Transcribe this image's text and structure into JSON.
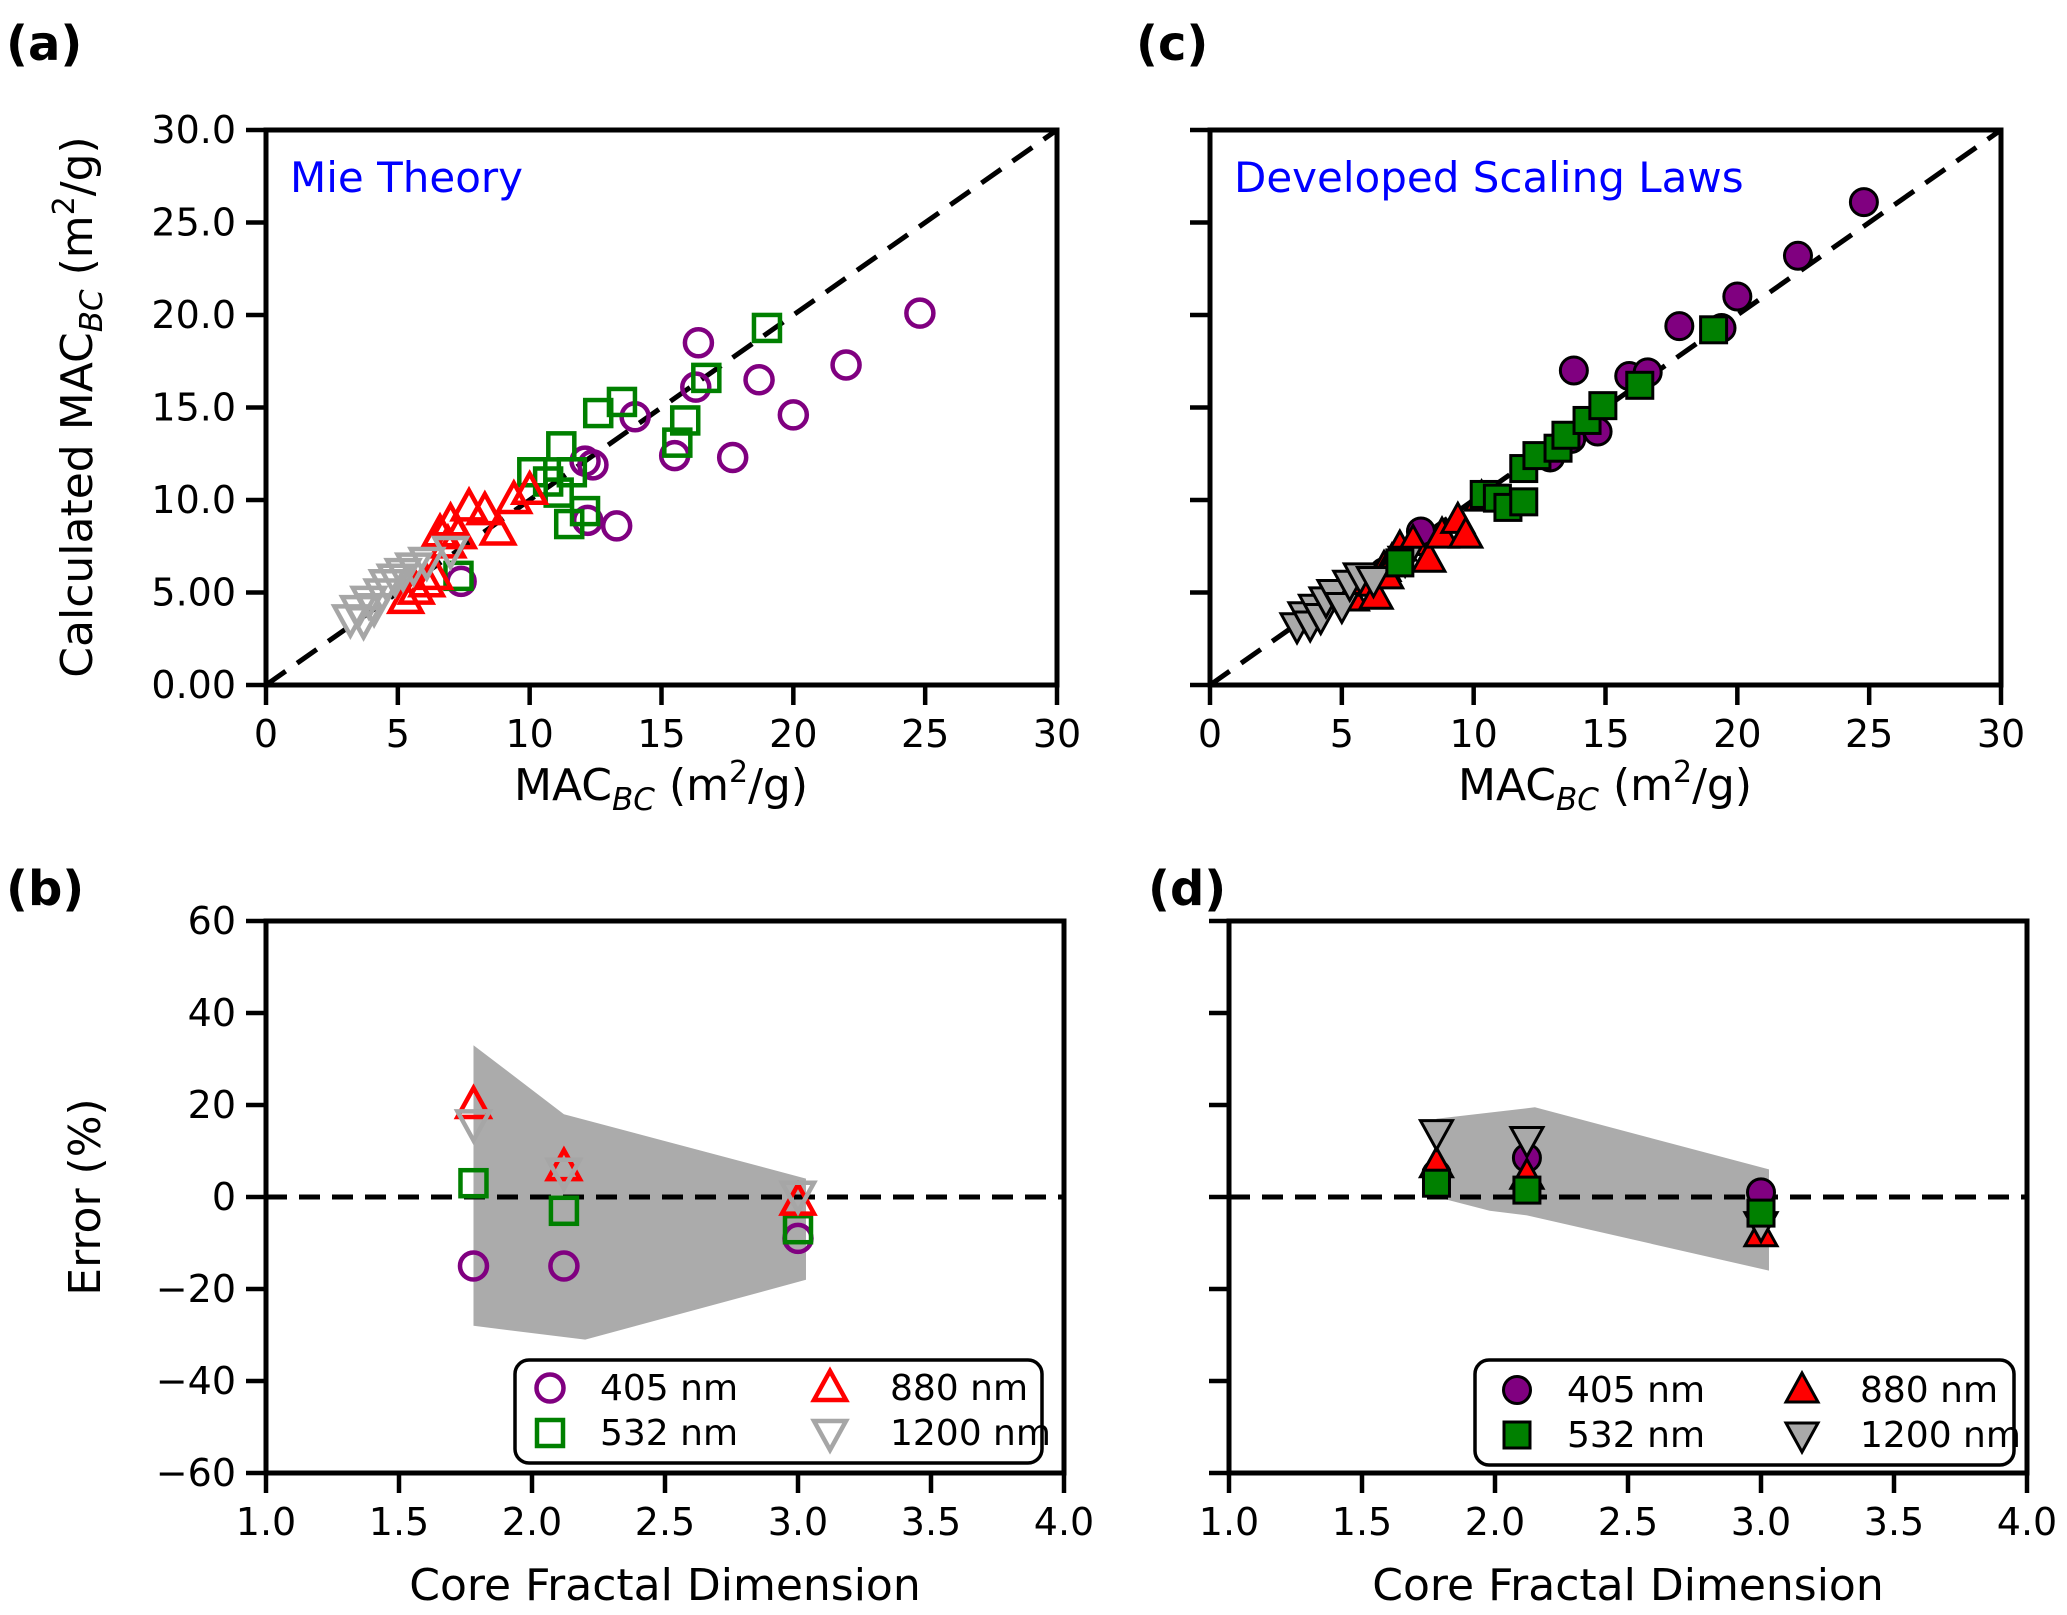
{
  "figure": {
    "background": "#ffffff",
    "annotation_color": "#0000FF",
    "band_color": "#ABABAB",
    "wavelength_colors": {
      "405 nm": "#800080",
      "532 nm": "#008000",
      "880 nm": "#FF0000",
      "1200 nm": "#A6A6A6"
    }
  },
  "chart_data": [
    {
      "panel_label": "(a)",
      "type": "scatter",
      "title": "Mie Theory",
      "xlim": [
        0,
        30
      ],
      "ylim": [
        0,
        30
      ],
      "xticks": {
        "values": [
          0,
          5,
          10,
          15,
          20,
          25,
          30
        ],
        "labels": [
          "0",
          "5",
          "10",
          "15",
          "20",
          "25",
          "30"
        ]
      },
      "yticks": {
        "values": [
          0,
          5,
          10,
          15,
          20,
          25,
          30
        ],
        "labels": [
          "0.00",
          "5.00",
          "10.0",
          "15.0",
          "20.0",
          "25.0",
          "30.0"
        ]
      },
      "xlabel_parts": [
        [
          "t",
          "MAC"
        ],
        [
          "sub",
          "BC"
        ],
        [
          "t",
          " (m"
        ],
        [
          "sup",
          "2"
        ],
        [
          "t",
          "/g)"
        ]
      ],
      "ylabel_parts": [
        [
          "t",
          "Calculated MAC"
        ],
        [
          "sub",
          "BC"
        ],
        [
          "t",
          " (m"
        ],
        [
          "sup",
          "2"
        ],
        [
          "t",
          "/g)"
        ]
      ],
      "identity_line": true,
      "marker_style": "open",
      "z_order": [
        0,
        1,
        2,
        3
      ],
      "series": [
        {
          "name": "405 nm",
          "marker": "circle",
          "color": "#800080",
          "points": [
            [
              7.4,
              5.6
            ],
            [
              12.1,
              12.1
            ],
            [
              12.4,
              11.9
            ],
            [
              14.0,
              14.5
            ],
            [
              12.2,
              8.9
            ],
            [
              13.3,
              8.6
            ],
            [
              15.5,
              12.4
            ],
            [
              17.7,
              12.3
            ],
            [
              16.4,
              18.5
            ],
            [
              16.3,
              16.1
            ],
            [
              18.7,
              16.5
            ],
            [
              20.0,
              14.6
            ],
            [
              22.0,
              17.3
            ],
            [
              24.8,
              20.1
            ]
          ]
        },
        {
          "name": "532 nm",
          "marker": "square",
          "color": "#008000",
          "points": [
            [
              7.3,
              5.9
            ],
            [
              10.1,
              11.5
            ],
            [
              10.7,
              11.0
            ],
            [
              11.1,
              10.4
            ],
            [
              11.2,
              12.9
            ],
            [
              11.6,
              11.5
            ],
            [
              12.6,
              14.7
            ],
            [
              13.5,
              15.3
            ],
            [
              11.5,
              8.7
            ],
            [
              12.1,
              9.4
            ],
            [
              15.9,
              14.3
            ],
            [
              15.6,
              13.1
            ],
            [
              16.7,
              16.6
            ],
            [
              19.0,
              19.3
            ]
          ]
        },
        {
          "name": "880 nm",
          "marker": "triangle-up",
          "color": "#FF0000",
          "points": [
            [
              5.3,
              4.6
            ],
            [
              5.7,
              5.1
            ],
            [
              6.1,
              5.5
            ],
            [
              6.4,
              5.9
            ],
            [
              6.6,
              8.2
            ],
            [
              7.0,
              8.8
            ],
            [
              7.3,
              8.1
            ],
            [
              7.7,
              9.6
            ],
            [
              8.3,
              9.4
            ],
            [
              8.8,
              8.3
            ],
            [
              9.4,
              10.0
            ],
            [
              10.0,
              10.5
            ],
            [
              6.9,
              7.6
            ]
          ]
        },
        {
          "name": "1200 nm",
          "marker": "triangle-down",
          "color": "#A6A6A6",
          "points": [
            [
              3.2,
              3.6
            ],
            [
              3.5,
              4.1
            ],
            [
              3.7,
              3.5
            ],
            [
              3.9,
              4.6
            ],
            [
              4.1,
              4.2
            ],
            [
              4.4,
              5.0
            ],
            [
              4.6,
              5.5
            ],
            [
              4.9,
              5.8
            ],
            [
              5.2,
              6.1
            ],
            [
              5.6,
              6.4
            ],
            [
              6.1,
              6.7
            ],
            [
              7.0,
              7.3
            ]
          ]
        }
      ]
    },
    {
      "panel_label": "(b)",
      "type": "scatter",
      "title": "",
      "xlim": [
        1.0,
        4.0
      ],
      "ylim": [
        -60,
        60
      ],
      "xticks": {
        "values": [
          1.0,
          1.5,
          2.0,
          2.5,
          3.0,
          3.5,
          4.0
        ],
        "labels": [
          "1.0",
          "1.5",
          "2.0",
          "2.5",
          "3.0",
          "3.5",
          "4.0"
        ]
      },
      "yticks": {
        "values": [
          60,
          40,
          20,
          0,
          -20,
          -40,
          -60
        ],
        "labels": [
          "60",
          "40",
          "20",
          "0",
          "−20",
          "−40",
          "−60"
        ]
      },
      "xlabel_parts": [
        [
          "t",
          "Core Fractal Dimension"
        ]
      ],
      "ylabel_parts": [
        [
          "t",
          "Error (%)"
        ]
      ],
      "zero_line": true,
      "marker_style": "open",
      "z_order": [
        0,
        1,
        2,
        3
      ],
      "legend": true,
      "band_color": "#ABABAB",
      "band": [
        [
          1.78,
          33
        ],
        [
          2.12,
          18
        ],
        [
          3.03,
          4
        ],
        [
          3.03,
          -18
        ],
        [
          2.2,
          -31
        ],
        [
          1.78,
          -28
        ]
      ],
      "series": [
        {
          "name": "405 nm",
          "marker": "circle",
          "color": "#800080",
          "points": [
            [
              1.78,
              -15
            ],
            [
              2.12,
              -15
            ],
            [
              3.0,
              -9
            ]
          ]
        },
        {
          "name": "532 nm",
          "marker": "square",
          "color": "#008000",
          "points": [
            [
              1.78,
              3
            ],
            [
              2.12,
              -3
            ],
            [
              3.0,
              -7
            ]
          ]
        },
        {
          "name": "880 nm",
          "marker": "triangle-up",
          "color": "#FF0000",
          "points": [
            [
              1.78,
              20
            ],
            [
              2.12,
              6.5
            ],
            [
              3.0,
              -1
            ]
          ]
        },
        {
          "name": "1200 nm",
          "marker": "triangle-down",
          "color": "#A6A6A6",
          "points": [
            [
              1.78,
              16
            ],
            [
              2.12,
              5.5
            ],
            [
              3.0,
              0.5
            ]
          ]
        }
      ]
    },
    {
      "panel_label": "(c)",
      "type": "scatter",
      "title": "Developed Scaling Laws",
      "xlim": [
        0,
        30
      ],
      "ylim": [
        0,
        30
      ],
      "xticks": {
        "values": [
          0,
          5,
          10,
          15,
          20,
          25,
          30
        ],
        "labels": [
          "0",
          "5",
          "10",
          "15",
          "20",
          "25",
          "30"
        ]
      },
      "yticks": {
        "values": [
          0,
          5,
          10,
          15,
          20,
          25,
          30
        ],
        "labels": []
      },
      "xlabel_parts": [
        [
          "t",
          "MAC"
        ],
        [
          "sub",
          "BC"
        ],
        [
          "t",
          " (m"
        ],
        [
          "sup",
          "2"
        ],
        [
          "t",
          "/g)"
        ]
      ],
      "ylabel_parts": [],
      "identity_line": true,
      "marker_style": "filled",
      "z_order": [
        0,
        2,
        3,
        1
      ],
      "series": [
        {
          "name": "405 nm",
          "marker": "circle",
          "color": "#800080",
          "points": [
            [
              6.6,
              6.1
            ],
            [
              8.0,
              8.3
            ],
            [
              12.9,
              12.3
            ],
            [
              13.7,
              13.3
            ],
            [
              14.7,
              13.7
            ],
            [
              13.8,
              17.0
            ],
            [
              15.9,
              16.7
            ],
            [
              16.6,
              16.9
            ],
            [
              17.8,
              19.4
            ],
            [
              19.4,
              19.3
            ],
            [
              20.0,
              21.0
            ],
            [
              22.3,
              23.2
            ],
            [
              24.8,
              26.1
            ]
          ]
        },
        {
          "name": "532 nm",
          "marker": "square",
          "color": "#008000",
          "points": [
            [
              7.2,
              6.6
            ],
            [
              10.4,
              10.3
            ],
            [
              10.9,
              10.1
            ],
            [
              11.3,
              9.6
            ],
            [
              11.9,
              9.9
            ],
            [
              11.9,
              11.7
            ],
            [
              12.4,
              12.4
            ],
            [
              13.2,
              12.8
            ],
            [
              13.5,
              13.5
            ],
            [
              14.3,
              14.3
            ],
            [
              14.9,
              15.1
            ],
            [
              16.3,
              16.2
            ],
            [
              19.1,
              19.2
            ]
          ]
        },
        {
          "name": "880 nm",
          "marker": "triangle-up",
          "color": "#FF0000",
          "points": [
            [
              5.4,
              4.7
            ],
            [
              5.9,
              5.5
            ],
            [
              6.3,
              4.8
            ],
            [
              6.6,
              6.3
            ],
            [
              6.9,
              6.7
            ],
            [
              7.2,
              7.4
            ],
            [
              7.7,
              7.7
            ],
            [
              8.3,
              6.8
            ],
            [
              8.8,
              8.1
            ],
            [
              9.4,
              8.9
            ],
            [
              9.7,
              8.1
            ],
            [
              10.3,
              10.1
            ],
            [
              6.7,
              5.9
            ]
          ]
        },
        {
          "name": "1200 nm",
          "marker": "triangle-down",
          "color": "#A9A9A9",
          "points": [
            [
              3.3,
              3.2
            ],
            [
              3.6,
              3.8
            ],
            [
              3.8,
              3.3
            ],
            [
              4.0,
              4.2
            ],
            [
              4.2,
              3.7
            ],
            [
              4.4,
              4.6
            ],
            [
              4.7,
              5.0
            ],
            [
              5.0,
              4.3
            ],
            [
              5.3,
              5.5
            ],
            [
              5.7,
              5.9
            ],
            [
              6.2,
              5.7
            ],
            [
              7.4,
              6.8
            ]
          ]
        }
      ]
    },
    {
      "panel_label": "(d)",
      "type": "scatter",
      "title": "",
      "xlim": [
        1.0,
        4.0
      ],
      "ylim": [
        -60,
        60
      ],
      "xticks": {
        "values": [
          1.0,
          1.5,
          2.0,
          2.5,
          3.0,
          3.5,
          4.0
        ],
        "labels": [
          "1.0",
          "1.5",
          "2.0",
          "2.5",
          "3.0",
          "3.5",
          "4.0"
        ]
      },
      "yticks": {
        "values": [
          60,
          40,
          20,
          0,
          -20,
          -40,
          -60
        ],
        "labels": []
      },
      "xlabel_parts": [
        [
          "t",
          "Core Fractal Dimension"
        ]
      ],
      "ylabel_parts": [],
      "zero_line": true,
      "marker_style": "filled",
      "z_order": [
        0,
        2,
        3,
        1
      ],
      "legend": true,
      "band_color": "#ABABAB",
      "band": [
        [
          1.78,
          17
        ],
        [
          2.15,
          19.5
        ],
        [
          3.03,
          6
        ],
        [
          3.03,
          -16
        ],
        [
          2.12,
          -4
        ],
        [
          1.98,
          -3
        ],
        [
          1.78,
          0
        ]
      ],
      "series": [
        {
          "name": "405 nm",
          "marker": "circle",
          "color": "#800080",
          "points": [
            [
              1.78,
              5
            ],
            [
              2.12,
              8.5
            ],
            [
              3.0,
              1
            ]
          ]
        },
        {
          "name": "532 nm",
          "marker": "square",
          "color": "#008000",
          "points": [
            [
              1.78,
              3
            ],
            [
              2.12,
              1.5
            ],
            [
              3.0,
              -3.5
            ]
          ]
        },
        {
          "name": "880 nm",
          "marker": "triangle-up",
          "color": "#FF0000",
          "points": [
            [
              1.78,
              7
            ],
            [
              2.12,
              4.5
            ],
            [
              3.0,
              -8
            ]
          ]
        },
        {
          "name": "1200 nm",
          "marker": "triangle-down",
          "color": "#A9A9A9",
          "points": [
            [
              1.78,
              14
            ],
            [
              2.12,
              12.5
            ],
            [
              3.0,
              -6
            ]
          ]
        }
      ]
    }
  ]
}
